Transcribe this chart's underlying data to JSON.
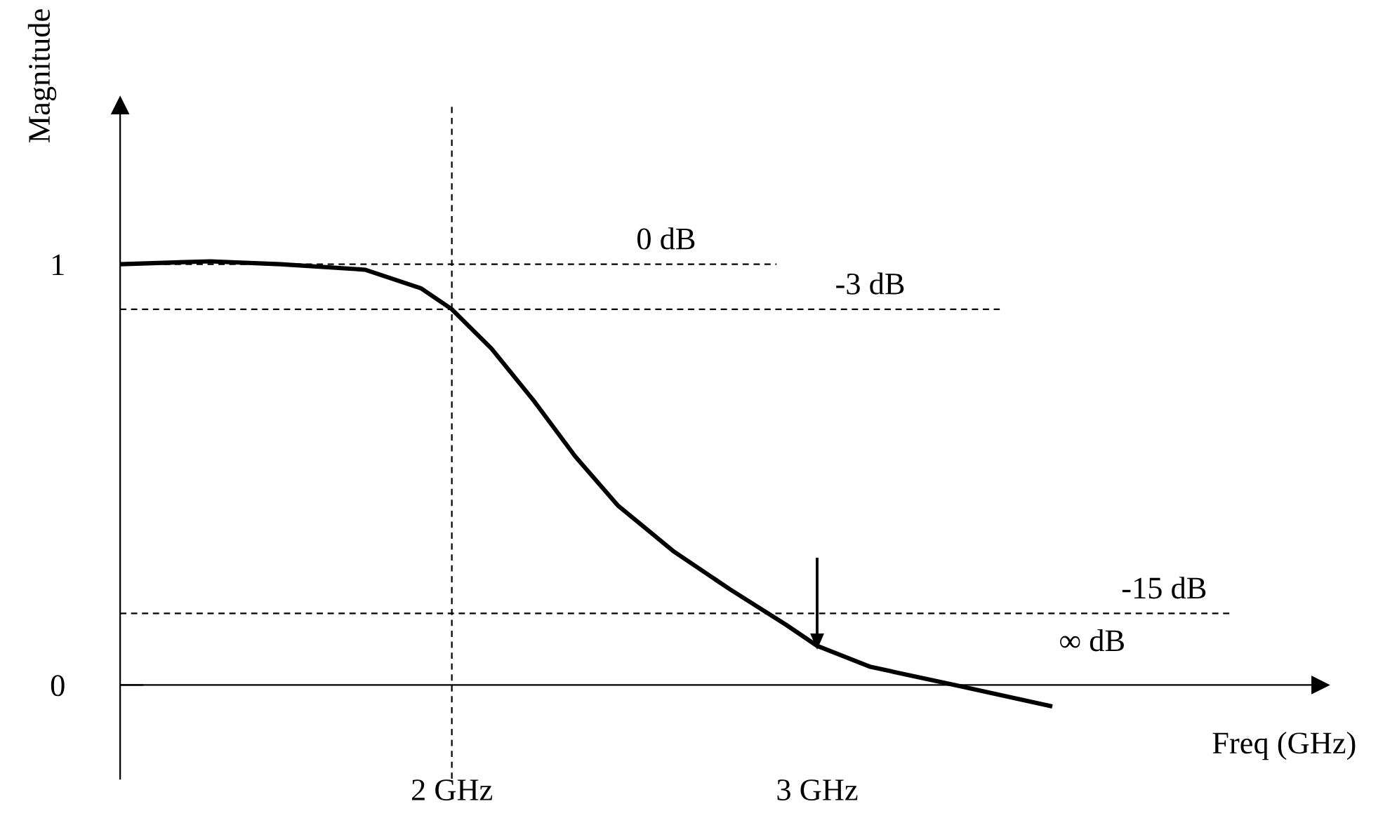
{
  "chart_data": {
    "type": "line",
    "xlabel": "Freq (GHz)",
    "ylabel": "Magnitude",
    "x": [
      1.092,
      1.338,
      1.531,
      1.762,
      1.915,
      2.0,
      2.108,
      2.223,
      2.338,
      2.454,
      2.608,
      2.762,
      2.915,
      3.0,
      3.146,
      3.377,
      3.638
    ],
    "series": [
      {
        "color": "#000000",
        "values": [
          1.0,
          1.007,
          1.0,
          0.987,
          0.943,
          0.893,
          0.8,
          0.677,
          0.543,
          0.427,
          0.317,
          0.227,
          0.143,
          0.093,
          0.043,
          0.0,
          -0.05
        ]
      }
    ],
    "xlim": [
      1.092,
      4.377
    ],
    "ylim": [
      -0.223,
      1.377
    ],
    "xticks": [
      {
        "value": 2,
        "label": "2 GHz"
      },
      {
        "value": 3,
        "label": "3 GHz"
      }
    ],
    "yticks": [
      0,
      1
    ],
    "ref_lines": [
      {
        "axis": "y",
        "value": 1,
        "label": "0 dB",
        "line_style": "dashed",
        "color": "#000000"
      },
      {
        "axis": "y",
        "value": 0.893,
        "label": "-3 dB",
        "line_style": "dashed",
        "color": "#000000"
      },
      {
        "axis": "y",
        "value": 0.17,
        "label": "-15 dB",
        "line_style": "dashed",
        "color": "#000000"
      },
      {
        "axis": "x",
        "value": 2,
        "line_style": "dashed",
        "color": "#000000"
      }
    ],
    "annotations": [
      "∞ dB"
    ],
    "grid": false,
    "marker": "none",
    "line_style": "solid"
  }
}
